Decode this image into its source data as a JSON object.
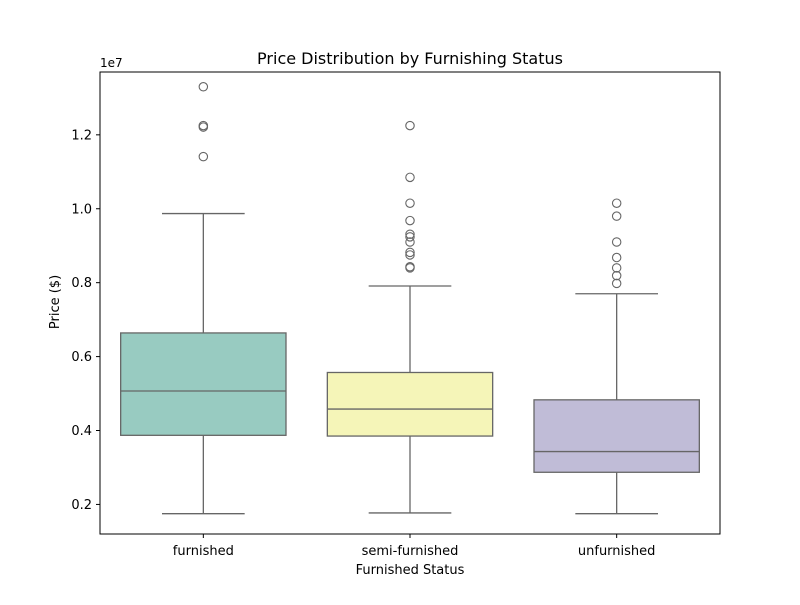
{
  "chart_data": {
    "type": "box",
    "title": "Price Distribution by Furnishing Status",
    "xlabel": "Furnished Status",
    "ylabel": "Price ($)",
    "y_offset_label": "1e7",
    "y_scale": 10000000,
    "ylim": [
      1.2,
      13.7
    ],
    "yticks": [
      2,
      4,
      6,
      8,
      10,
      12
    ],
    "ytick_labels": [
      "0.2",
      "0.4",
      "0.6",
      "0.8",
      "1.0",
      "1.2"
    ],
    "grid": false,
    "categories": [
      "furnished",
      "semi-furnished",
      "unfurnished"
    ],
    "colors": [
      "#98cbc1",
      "#f5f5b8",
      "#c0bcd7"
    ],
    "line_color": "#666666",
    "boxes": [
      {
        "category": "furnished",
        "whisker_low": 1.75,
        "q1": 3.87,
        "median": 5.07,
        "q3": 6.64,
        "whisker_high": 9.87,
        "outliers": [
          11.41,
          12.21,
          12.25,
          13.3
        ]
      },
      {
        "category": "semi-furnished",
        "whisker_low": 1.77,
        "q1": 3.85,
        "median": 4.58,
        "q3": 5.57,
        "whisker_high": 7.91,
        "outliers": [
          8.4,
          8.43,
          8.75,
          8.82,
          9.1,
          9.24,
          9.31,
          9.68,
          10.15,
          10.85,
          12.25
        ]
      },
      {
        "category": "unfurnished",
        "whisker_low": 1.75,
        "q1": 2.87,
        "median": 3.43,
        "q3": 4.83,
        "whisker_high": 7.7,
        "outliers": [
          7.98,
          8.19,
          8.4,
          8.68,
          9.1,
          9.8,
          10.15
        ]
      }
    ]
  }
}
